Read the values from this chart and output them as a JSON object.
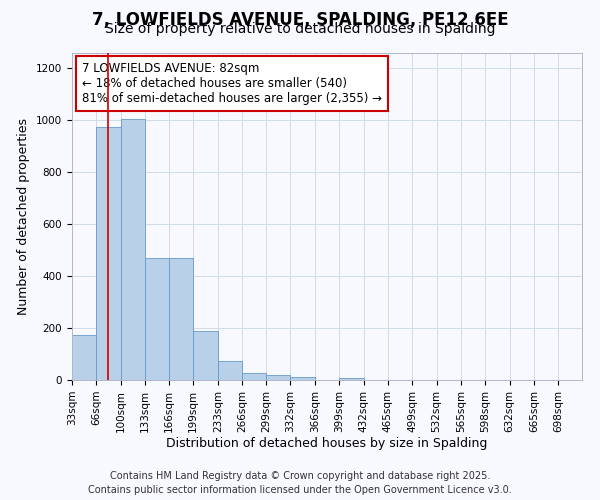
{
  "title_line1": "7, LOWFIELDS AVENUE, SPALDING, PE12 6EE",
  "title_line2": "Size of property relative to detached houses in Spalding",
  "xlabel": "Distribution of detached houses by size in Spalding",
  "ylabel": "Number of detached properties",
  "bar_labels": [
    "33sqm",
    "66sqm",
    "100sqm",
    "133sqm",
    "166sqm",
    "199sqm",
    "233sqm",
    "266sqm",
    "299sqm",
    "332sqm",
    "366sqm",
    "399sqm",
    "432sqm",
    "465sqm",
    "499sqm",
    "532sqm",
    "565sqm",
    "598sqm",
    "632sqm",
    "665sqm",
    "698sqm"
  ],
  "bar_heights": [
    175,
    975,
    1005,
    470,
    470,
    190,
    75,
    28,
    20,
    10,
    0,
    8,
    0,
    0,
    0,
    0,
    0,
    0,
    0,
    0,
    0
  ],
  "bar_color": "#b8d0e8",
  "bar_edge_color": "#6699cc",
  "grid_color": "#d0dcea",
  "annotation_line1": "7 LOWFIELDS AVENUE: 82sqm",
  "annotation_line2": "← 18% of detached houses are smaller (540)",
  "annotation_line3": "81% of semi-detached houses are larger (2,355) →",
  "annotation_box_color": "#ffffff",
  "annotation_box_edge_color": "#cc0000",
  "vline_x": 82,
  "vline_color": "#cc0000",
  "bin_edges": [
    33,
    66,
    100,
    133,
    166,
    199,
    233,
    266,
    299,
    332,
    366,
    399,
    432,
    465,
    499,
    532,
    565,
    598,
    632,
    665,
    698,
    731
  ],
  "ylim": [
    0,
    1260
  ],
  "yticks": [
    0,
    200,
    400,
    600,
    800,
    1000,
    1200
  ],
  "footer_line1": "Contains HM Land Registry data © Crown copyright and database right 2025.",
  "footer_line2": "Contains public sector information licensed under the Open Government Licence v3.0.",
  "bg_color": "#f8f8ff",
  "title_fontsize": 12,
  "subtitle_fontsize": 10,
  "axis_label_fontsize": 9,
  "tick_fontsize": 7.5,
  "footer_fontsize": 7,
  "annot_fontsize": 8.5
}
